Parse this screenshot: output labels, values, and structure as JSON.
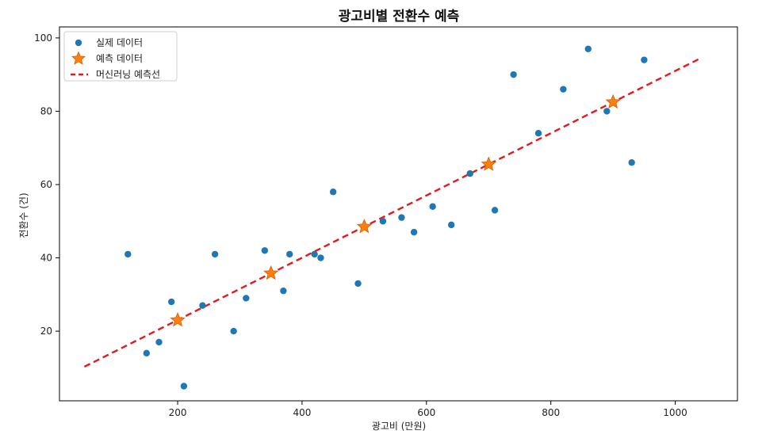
{
  "chart_data": {
    "type": "scatter",
    "title": "광고비별 전환수 예측",
    "xlabel": "광고비 (만원)",
    "ylabel": "전환수 (건)",
    "xlim": [
      10,
      1100
    ],
    "ylim": [
      1,
      103
    ],
    "x_ticks": [
      200,
      400,
      600,
      800,
      1000
    ],
    "y_ticks": [
      20,
      40,
      60,
      80,
      100
    ],
    "grid": false,
    "legend_placement": "top-left",
    "series": [
      {
        "name": "실제 데이터",
        "kind": "scatter",
        "marker": "circle",
        "color": "#1f77b4",
        "points": [
          {
            "x": 120,
            "y": 41
          },
          {
            "x": 150,
            "y": 14
          },
          {
            "x": 170,
            "y": 17
          },
          {
            "x": 190,
            "y": 28
          },
          {
            "x": 210,
            "y": 5
          },
          {
            "x": 240,
            "y": 27
          },
          {
            "x": 260,
            "y": 41
          },
          {
            "x": 290,
            "y": 20
          },
          {
            "x": 310,
            "y": 29
          },
          {
            "x": 340,
            "y": 42
          },
          {
            "x": 370,
            "y": 31
          },
          {
            "x": 380,
            "y": 41
          },
          {
            "x": 420,
            "y": 41
          },
          {
            "x": 430,
            "y": 40
          },
          {
            "x": 450,
            "y": 58
          },
          {
            "x": 490,
            "y": 33
          },
          {
            "x": 530,
            "y": 50
          },
          {
            "x": 560,
            "y": 51
          },
          {
            "x": 580,
            "y": 47
          },
          {
            "x": 610,
            "y": 54
          },
          {
            "x": 640,
            "y": 49
          },
          {
            "x": 670,
            "y": 63
          },
          {
            "x": 710,
            "y": 53
          },
          {
            "x": 740,
            "y": 90
          },
          {
            "x": 780,
            "y": 74
          },
          {
            "x": 820,
            "y": 86
          },
          {
            "x": 860,
            "y": 97
          },
          {
            "x": 890,
            "y": 80
          },
          {
            "x": 930,
            "y": 66
          },
          {
            "x": 950,
            "y": 94
          }
        ]
      },
      {
        "name": "예측 데이터",
        "kind": "scatter",
        "marker": "star",
        "color": "#ff7f0e",
        "points": [
          {
            "x": 200,
            "y": 23
          },
          {
            "x": 350,
            "y": 35.8
          },
          {
            "x": 500,
            "y": 48.5
          },
          {
            "x": 700,
            "y": 65.5
          },
          {
            "x": 900,
            "y": 82.5
          }
        ]
      },
      {
        "name": "머신러닝 예측선",
        "kind": "line",
        "style": "dashed",
        "color": "#e31a1c",
        "points": [
          {
            "x": 50,
            "y": 10.3
          },
          {
            "x": 1040,
            "y": 94.4
          }
        ]
      }
    ]
  }
}
